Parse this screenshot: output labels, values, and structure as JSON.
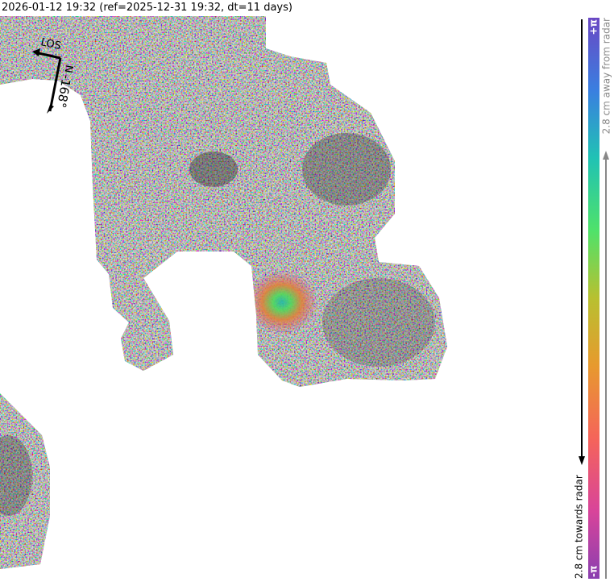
{
  "header": {
    "title": "2026-01-12 19:32 (ref=2025-12-31 19:32, dt=11 days)"
  },
  "compass": {
    "los": "LOS",
    "north": "N",
    "heading": "-168°"
  },
  "colorbar": {
    "max_label": "+π",
    "min_label": "-π",
    "away": "2.8 cm away from radar",
    "towards": "2.8 cm towards radar"
  }
}
